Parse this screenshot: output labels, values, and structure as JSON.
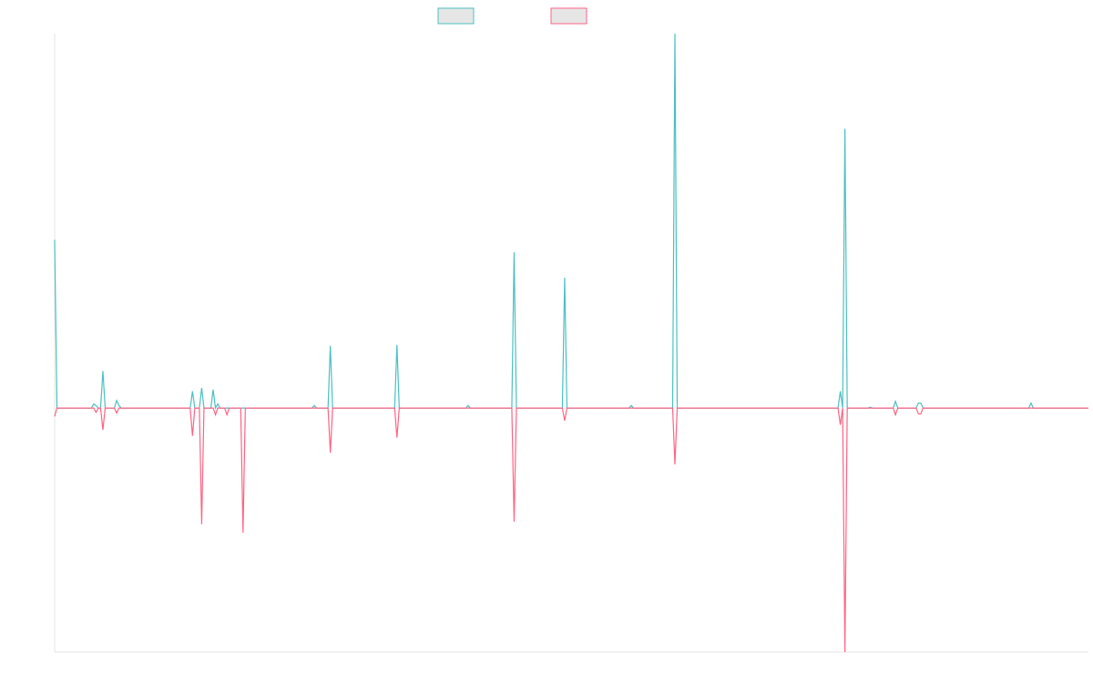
{
  "chart_data": {
    "type": "line",
    "title": "",
    "xlabel": "",
    "ylabel": "",
    "grid": false,
    "legend_position": "top-center",
    "ylim": [
      -290,
      445
    ],
    "x": [
      0,
      1,
      2,
      3,
      4,
      5,
      6,
      7,
      8,
      9,
      10,
      11,
      12,
      13,
      14,
      15,
      16,
      17,
      18,
      19,
      20,
      21,
      22,
      23,
      24,
      25,
      26,
      27,
      28,
      29,
      30,
      31,
      32,
      33,
      34,
      35,
      36,
      37,
      38,
      39,
      40,
      41,
      42,
      43,
      44,
      45,
      46,
      47,
      48,
      49,
      50,
      51,
      52,
      53,
      54,
      55,
      56,
      57,
      58,
      59,
      60,
      61,
      62,
      63,
      64,
      65,
      66,
      67,
      68,
      69,
      70,
      71,
      72,
      73,
      74,
      75,
      76,
      77,
      78,
      79,
      80,
      81,
      82,
      83,
      84,
      85,
      86,
      87,
      88,
      89,
      90,
      91,
      92,
      93,
      94,
      95,
      96,
      97,
      98,
      99,
      100,
      101,
      102,
      103,
      104,
      105,
      106,
      107,
      108,
      109,
      110,
      111,
      112,
      113,
      114,
      115,
      116,
      117,
      118,
      119,
      120,
      121,
      122,
      123,
      124,
      125,
      126,
      127,
      128,
      129,
      130,
      131,
      132,
      133,
      134,
      135,
      136,
      137,
      138,
      139,
      140,
      141,
      142,
      143,
      144,
      145,
      146,
      147,
      148,
      149,
      150,
      151,
      152,
      153,
      154,
      155,
      156,
      157,
      158,
      159,
      160,
      161,
      162,
      163,
      164,
      165,
      166,
      167,
      168,
      169,
      170,
      171,
      172,
      173,
      174,
      175,
      176,
      177,
      178,
      179,
      180,
      181,
      182,
      183,
      184,
      185,
      186,
      187,
      188,
      189,
      190,
      191,
      192,
      193,
      194,
      195,
      196,
      197,
      198,
      199,
      200,
      201,
      202,
      203,
      204,
      205,
      206,
      207,
      208,
      209,
      210,
      211,
      212,
      213,
      214,
      215,
      216,
      217,
      218,
      219,
      220,
      221,
      222,
      223,
      224,
      225,
      226,
      227,
      228,
      229,
      230,
      231,
      232,
      233,
      234,
      235,
      236,
      237,
      238,
      239,
      240,
      241,
      242,
      243,
      244,
      245,
      246,
      247,
      248,
      249,
      250,
      251,
      252,
      253,
      254,
      255,
      256,
      257,
      258,
      259,
      260,
      261,
      262,
      263,
      264,
      265,
      266,
      267,
      268,
      269,
      270,
      271,
      272,
      273,
      274,
      275,
      276,
      277,
      278,
      279,
      280,
      281,
      282,
      283,
      284,
      285,
      286,
      287,
      288,
      289,
      290,
      291,
      292,
      293,
      294,
      295,
      296,
      297,
      298,
      299,
      300,
      301,
      302,
      303,
      304,
      305,
      306,
      307,
      308,
      309,
      310,
      311,
      312,
      313,
      314,
      315,
      316,
      317,
      318,
      319,
      320,
      321,
      322,
      323,
      324,
      325,
      326,
      327,
      328,
      329,
      330,
      331,
      332,
      333,
      334,
      335,
      336,
      337,
      338,
      339,
      340,
      341,
      342,
      343,
      344,
      345,
      346,
      347,
      348,
      349,
      350,
      351,
      352,
      353,
      354,
      355,
      356,
      357,
      358,
      359,
      360,
      361,
      362,
      363,
      364,
      365,
      366,
      367,
      368,
      369,
      370,
      371,
      372,
      373,
      374,
      375,
      376,
      377,
      378,
      379,
      380,
      381,
      382,
      383,
      384,
      385,
      386,
      387,
      388,
      389,
      390,
      391,
      392,
      393,
      394,
      395,
      396,
      397,
      398,
      399,
      400,
      401,
      402,
      403,
      404,
      405,
      406,
      407,
      408,
      409,
      410,
      411,
      412,
      413,
      414,
      415,
      416,
      417,
      418,
      419,
      420,
      421,
      422,
      423,
      424,
      425,
      426,
      427,
      428,
      429,
      430,
      431,
      432,
      433,
      434,
      435,
      436,
      437,
      438,
      439,
      440,
      441,
      442,
      443,
      444,
      445,
      446,
      447,
      448,
      449,
      450
    ],
    "series": [
      {
        "name": "",
        "color": "#4bc0c0",
        "peaks": [
          [
            0,
            200
          ],
          [
            17,
            5
          ],
          [
            18,
            3
          ],
          [
            21,
            44
          ],
          [
            27,
            9
          ],
          [
            28,
            3
          ],
          [
            60,
            20
          ],
          [
            64,
            24
          ],
          [
            69,
            22
          ],
          [
            71,
            5
          ],
          [
            113,
            3
          ],
          [
            120,
            74
          ],
          [
            149,
            75
          ],
          [
            180,
            3
          ],
          [
            200,
            185
          ],
          [
            222,
            155
          ],
          [
            251,
            3
          ],
          [
            270,
            445
          ],
          [
            342,
            20
          ],
          [
            344,
            332
          ],
          [
            355,
            1
          ],
          [
            366,
            8
          ],
          [
            376,
            6
          ],
          [
            377,
            6
          ],
          [
            425,
            6
          ]
        ]
      },
      {
        "name": "",
        "color": "#ff6384",
        "peaks": [
          [
            0,
            -10
          ],
          [
            18,
            -5
          ],
          [
            21,
            -26
          ],
          [
            27,
            -6
          ],
          [
            60,
            -33
          ],
          [
            64,
            -138
          ],
          [
            70,
            -8
          ],
          [
            75,
            -8
          ],
          [
            82,
            -148
          ],
          [
            120,
            -53
          ],
          [
            149,
            -35
          ],
          [
            200,
            -135
          ],
          [
            222,
            -15
          ],
          [
            270,
            -67
          ],
          [
            342,
            -20
          ],
          [
            344,
            -290
          ],
          [
            366,
            -8
          ],
          [
            376,
            -7
          ],
          [
            377,
            -7
          ]
        ]
      }
    ]
  },
  "colors": {
    "axis": "#e6e6e6",
    "legend_fill": "#e6e6e6"
  }
}
